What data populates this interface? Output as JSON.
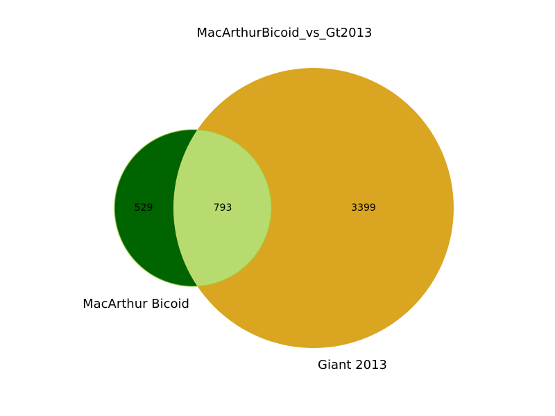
{
  "chart_data": {
    "type": "venn",
    "title": "MacArthurBicoid_vs_Gt2013",
    "sets": [
      {
        "name": "MacArthur Bicoid",
        "color": "#006400"
      },
      {
        "name": "Giant 2013",
        "color": "#DAA520"
      }
    ],
    "regions": {
      "only_a": 529,
      "intersection": 793,
      "only_b": 3399
    },
    "intersection_color": "#B8DB6F"
  }
}
